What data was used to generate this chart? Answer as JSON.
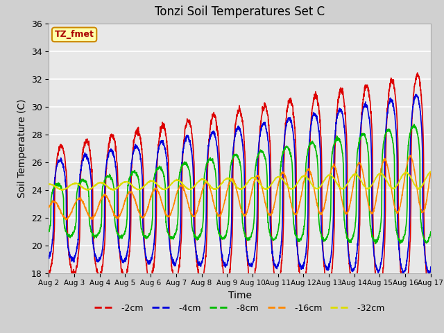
{
  "title": "Tonzi Soil Temperatures Set C",
  "xlabel": "Time",
  "ylabel": "Soil Temperature (C)",
  "ylim": [
    18,
    36
  ],
  "yticks": [
    18,
    20,
    22,
    24,
    26,
    28,
    30,
    32,
    34,
    36
  ],
  "xtick_labels": [
    "Aug 2",
    "Aug 3",
    "Aug 4",
    "Aug 5",
    "Aug 6",
    "Aug 7",
    "Aug 8",
    "Aug 9",
    "Aug 10",
    "Aug 11",
    "Aug 12",
    "Aug 13",
    "Aug 14",
    "Aug 15",
    "Aug 16",
    "Aug 17"
  ],
  "series_order": [
    "-2cm",
    "-4cm",
    "-8cm",
    "-16cm",
    "-32cm"
  ],
  "series": {
    "-2cm": {
      "color": "#dd0000",
      "lw": 1.2
    },
    "-4cm": {
      "color": "#0000dd",
      "lw": 1.2
    },
    "-8cm": {
      "color": "#00bb00",
      "lw": 1.2
    },
    "-16cm": {
      "color": "#ff8800",
      "lw": 1.2
    },
    "-32cm": {
      "color": "#dddd00",
      "lw": 1.2
    }
  },
  "annotation_text": "TZ_fmet",
  "annotation_bg": "#ffffaa",
  "annotation_border": "#cc8800",
  "annotation_text_color": "#aa0000",
  "fig_bg": "#d0d0d0",
  "plot_bg": "#e8e8e8",
  "grid_color": "#ffffff",
  "n_days": 15,
  "samples_per_day": 144
}
